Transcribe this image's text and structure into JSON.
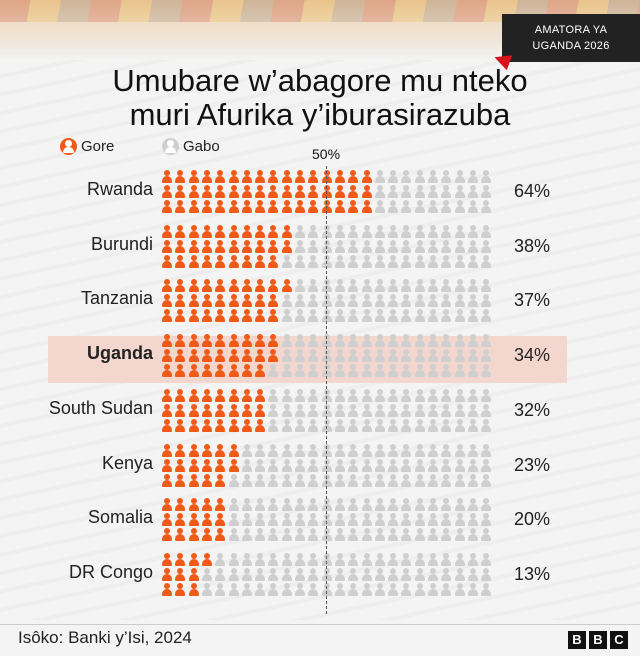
{
  "tag": {
    "line1": "AMATORA YA",
    "line2": "UGANDA 2026"
  },
  "title_line1": "Umubare w’abagore mu nteko",
  "title_line2": "muri Afurika y’iburasirazuba",
  "legend": [
    {
      "label": "Gore",
      "color": "#f05a18"
    },
    {
      "label": "Gabo",
      "color": "#cfcfcf"
    }
  ],
  "midline_label": "50%",
  "colors": {
    "female": "#f05a18",
    "male": "#cfcfcf",
    "highlight": "#f3d7cf"
  },
  "chart_data": {
    "type": "bar",
    "categories": [
      "Rwanda",
      "Burundi",
      "Tanzania",
      "Uganda",
      "South Sudan",
      "Kenya",
      "Somalia",
      "DR Congo"
    ],
    "series": [
      {
        "name": "Gore",
        "values": [
          64,
          38,
          37,
          34,
          32,
          23,
          20,
          13
        ]
      }
    ],
    "value_labels": [
      "64%",
      "38%",
      "37%",
      "34%",
      "32%",
      "23%",
      "20%",
      "13%"
    ],
    "highlighted": "Uganda",
    "ylim": [
      0,
      100
    ],
    "reference_line": 50,
    "grid": false,
    "legend_position": "top-left"
  },
  "source": "Isôko: Banki y’Isi, 2024",
  "logo": "BBC"
}
